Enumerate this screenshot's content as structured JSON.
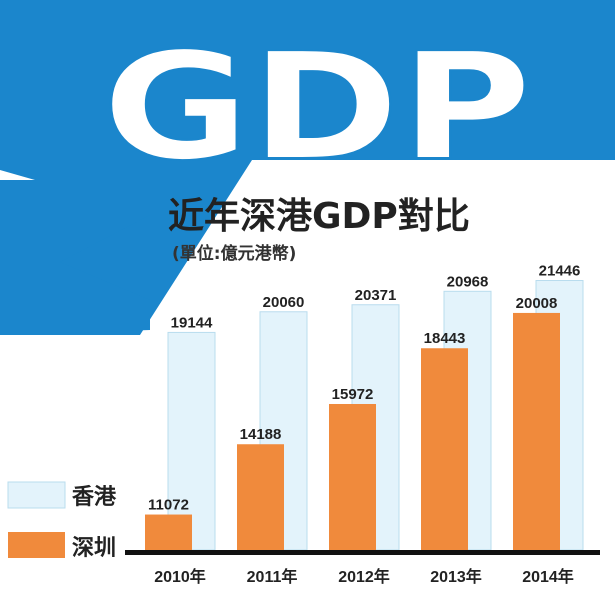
{
  "colors": {
    "banner_blue": "#1b86cc",
    "hk_bar": "#e3f3fb",
    "hk_bar_edge": "#b9dcee",
    "sz_bar": "#f08a3c",
    "baseline": "#111111",
    "text": "#222222"
  },
  "chart_data": {
    "type": "bar",
    "banner": "GDP",
    "title": "近年深港GDP對比",
    "subtitle": "(單位:億元港幣)",
    "categories": [
      "2010年",
      "2011年",
      "2012年",
      "2013年",
      "2014年"
    ],
    "series": [
      {
        "name": "香港",
        "values": [
          19144,
          20060,
          20371,
          20968,
          21446
        ]
      },
      {
        "name": "深圳",
        "values": [
          11072,
          14188,
          15972,
          18443,
          20008
        ]
      }
    ],
    "ylim": [
      9500,
      22000
    ],
    "legend_position": "left",
    "grid": false
  }
}
